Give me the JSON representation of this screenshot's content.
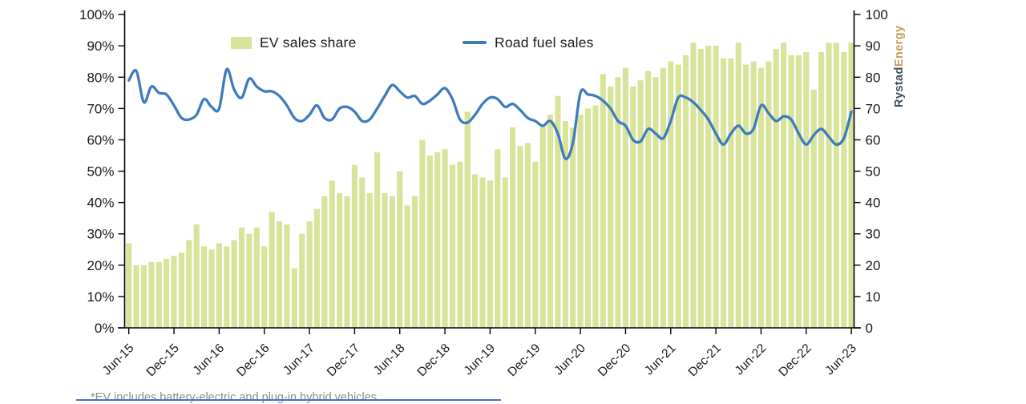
{
  "legend": [
    {
      "label": "EV sales share",
      "type": "bar",
      "color": "#d8e39c"
    },
    {
      "label": "Road fuel sales",
      "type": "line",
      "color": "#3e7bbd"
    }
  ],
  "branding": {
    "part1": "Rystad",
    "part2": "Energy",
    "color1": "#3d4f5e",
    "color2": "#c99a5b"
  },
  "footnote": "*EV includes battery-electric and plug-in hybrid vehicles",
  "chart_data": {
    "type": "bar+line combo",
    "interval": "monthly",
    "x_start": "Jun-15",
    "x_end": "Jun-23",
    "x_tick_labels": [
      "Jun-15",
      "Dec-15",
      "Jun-16",
      "Dec-16",
      "Jun-17",
      "Dec-17",
      "Jun-18",
      "Dec-18",
      "Jun-19",
      "Dec-19",
      "Jun-20",
      "Dec-20",
      "Jun-21",
      "Dec-21",
      "Jun-22",
      "Dec-22",
      "Jun-23"
    ],
    "left_axis": {
      "min": 0,
      "max": 100,
      "step": 10,
      "unit": "%",
      "tick_labels": [
        "0%",
        "10%",
        "20%",
        "30%",
        "40%",
        "50%",
        "60%",
        "70%",
        "80%",
        "90%",
        "100%"
      ]
    },
    "right_axis": {
      "min": 0,
      "max": 100,
      "step": 10,
      "tick_labels": [
        "0",
        "10",
        "20",
        "30",
        "40",
        "50",
        "60",
        "70",
        "80",
        "90",
        "100"
      ]
    },
    "grid": false,
    "legend_position": "top",
    "series": [
      {
        "name": "EV sales share",
        "type": "bar",
        "axis": "left",
        "unit": "%",
        "color": "#d8e39c",
        "values": [
          27,
          20,
          20,
          21,
          21,
          22,
          23,
          24,
          28,
          33,
          26,
          25,
          27,
          26,
          28,
          32,
          30,
          32,
          26,
          37,
          34,
          33,
          19,
          30,
          34,
          38,
          42,
          47,
          43,
          42,
          52,
          48,
          43,
          56,
          43,
          42,
          50,
          39,
          42,
          60,
          55,
          56,
          57,
          52,
          53,
          69,
          49,
          48,
          47,
          57,
          48,
          64,
          58,
          59,
          53,
          65,
          68,
          74,
          66,
          64,
          68,
          70,
          71,
          81,
          77,
          80,
          83,
          77,
          79,
          82,
          80,
          83,
          85,
          84,
          87,
          91,
          89,
          90,
          90,
          86,
          86,
          91,
          84,
          85,
          83,
          85,
          89,
          91,
          87,
          87,
          88,
          76,
          88,
          91,
          91,
          88,
          91
        ]
      },
      {
        "name": "Road fuel sales",
        "type": "line",
        "axis": "right",
        "color": "#3e7bbd",
        "values": [
          79,
          82,
          72,
          77,
          75,
          74.5,
          71,
          67,
          66.5,
          68,
          73,
          70.5,
          70,
          82.5,
          76,
          73.5,
          79.5,
          77,
          75.5,
          75.5,
          74,
          71,
          67,
          66,
          68,
          71,
          67,
          66.5,
          70,
          70.5,
          69,
          66,
          66.5,
          70,
          74,
          77.5,
          75.5,
          73.5,
          74,
          71.5,
          72.5,
          74.5,
          76.5,
          73,
          66.5,
          65.5,
          68,
          71.5,
          73.5,
          73,
          70.5,
          71.5,
          69.5,
          67,
          66,
          64.5,
          66,
          62,
          54,
          59,
          75,
          74.5,
          74,
          72.5,
          70,
          66,
          64.5,
          60,
          59.5,
          63.5,
          62,
          60.5,
          66,
          73.5,
          73.5,
          72,
          69.5,
          66.5,
          62,
          58.5,
          62,
          64.5,
          62,
          63.5,
          71,
          68.5,
          66,
          67.5,
          66.5,
          62,
          58.5,
          61.5,
          63.5,
          61,
          58.5,
          60.5,
          69
        ]
      }
    ]
  }
}
